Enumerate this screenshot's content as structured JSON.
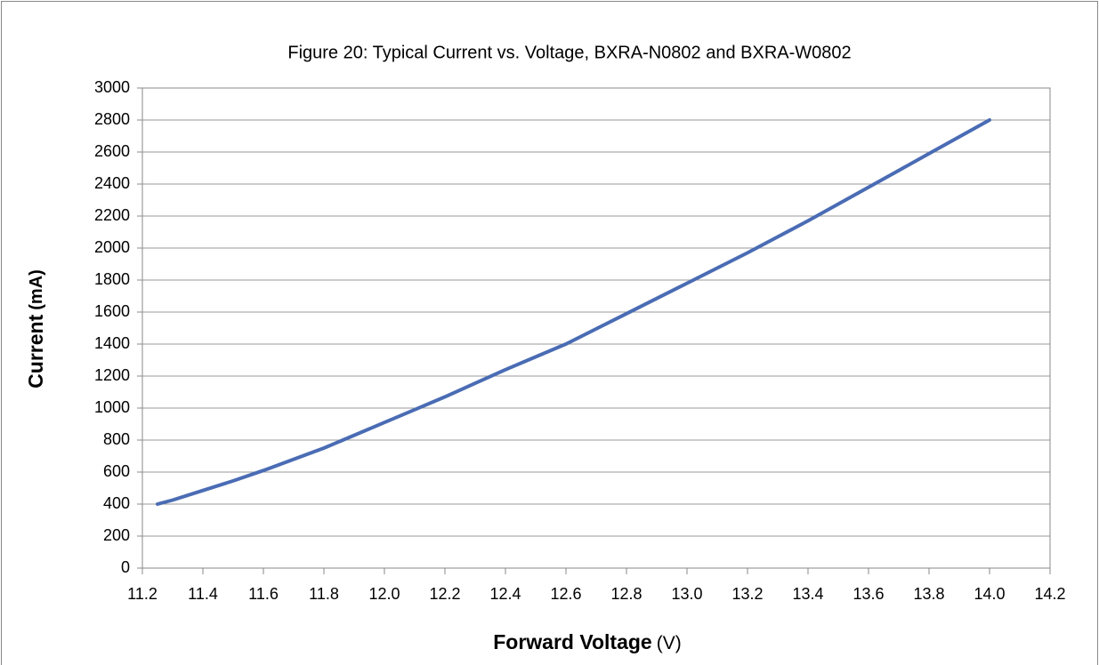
{
  "chart_data": {
    "type": "line",
    "title": "Figure 20:  Typical Current vs. Voltage, BXRA-N0802 and BXRA-W0802",
    "x_label": "Forward Voltage",
    "x_unit": "(V)",
    "y_label": "Current",
    "y_unit": "(mA)",
    "series": [
      {
        "name": "BXRA-N0802 and BXRA-W0802",
        "color": "#4a6cb4",
        "x": [
          11.25,
          11.3,
          11.4,
          11.5,
          11.6,
          11.7,
          11.8,
          11.9,
          12,
          12.1,
          12.2,
          12.3,
          12.4,
          12.5,
          12.6,
          12.7,
          12.8,
          12.9,
          13,
          13.1,
          13.2,
          13.3,
          13.4,
          13.5,
          13.6,
          13.7,
          13.8,
          13.9,
          14
        ],
        "values": [
          400,
          425,
          485,
          545,
          610,
          680,
          750,
          830,
          910,
          990,
          1070,
          1155,
          1240,
          1320,
          1400,
          1495,
          1590,
          1685,
          1780,
          1875,
          1970,
          2070,
          2170,
          2275,
          2380,
          2485,
          2590,
          2695,
          2800
        ]
      }
    ],
    "xlim": [
      11.2,
      14.2
    ],
    "xticks": [
      11.2,
      11.4,
      11.6,
      11.8,
      {
        "value": 12,
        "label": "12.0"
      },
      12.2,
      12.4,
      12.6,
      12.8,
      {
        "value": 13,
        "label": "13.0"
      },
      13.2,
      13.4,
      13.6,
      13.8,
      {
        "value": 14,
        "label": "14.0"
      },
      14.2
    ],
    "ylim": [
      0,
      3000
    ],
    "yticks": [
      0,
      200,
      400,
      600,
      800,
      1000,
      1200,
      1400,
      1600,
      1800,
      2000,
      2200,
      2400,
      2600,
      2800,
      3000
    ],
    "grid": true
  }
}
